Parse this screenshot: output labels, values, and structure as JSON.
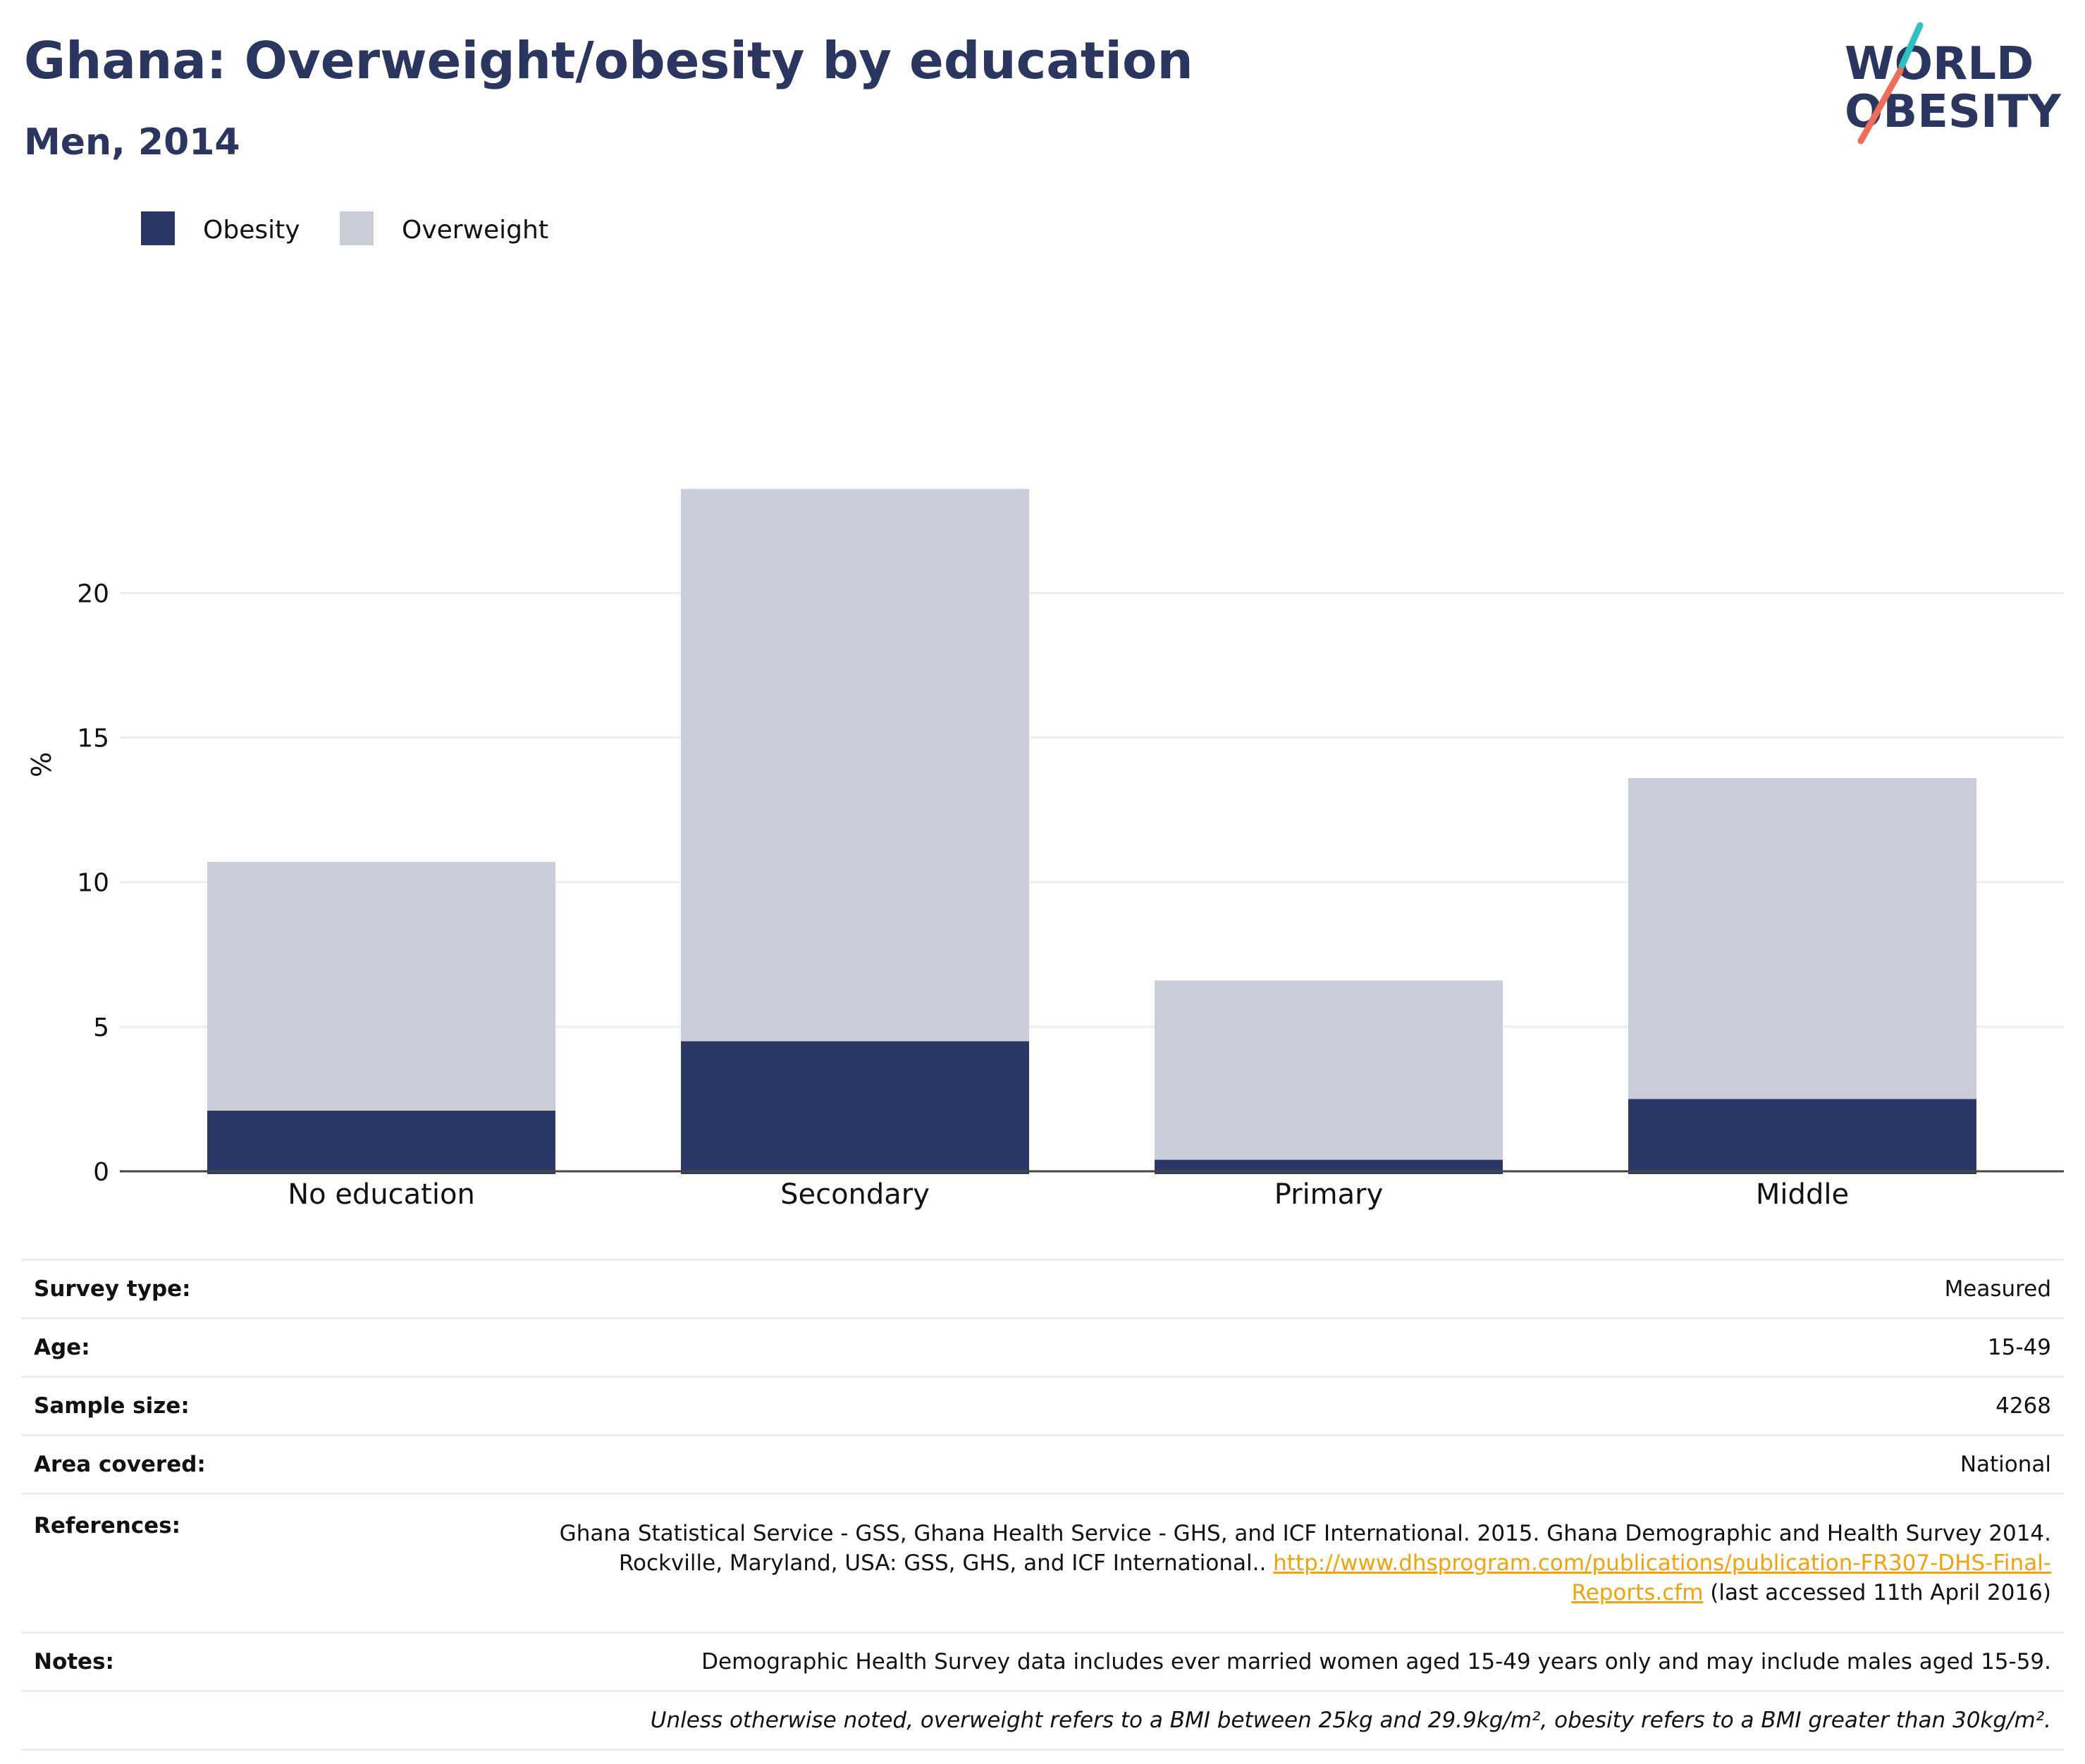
{
  "header": {
    "title": "Ghana: Overweight/obesity by education",
    "subtitle": "Men, 2014"
  },
  "logo": {
    "line1": "WORLD",
    "line2": "OBESITY"
  },
  "colors": {
    "obesity": "#2b3764",
    "overweight": "#cbcdd8",
    "title": "#2a3560",
    "accent_teal": "#2fc0c3",
    "accent_coral": "#ef6e5a",
    "link": "#f0a30a",
    "grid": "#ececf1"
  },
  "chart_data": {
    "type": "bar",
    "stacked": true,
    "categories": [
      "No education",
      "Secondary",
      "Primary",
      "Middle"
    ],
    "series": [
      {
        "name": "Obesity",
        "values": [
          2.1,
          4.5,
          0.4,
          2.5
        ]
      },
      {
        "name": "Overweight",
        "values": [
          8.6,
          19.1,
          6.2,
          11.1
        ]
      }
    ],
    "ylabel": "%",
    "yticks": [
      0,
      5,
      10,
      15,
      20
    ],
    "ylim": [
      0,
      27.3
    ],
    "grid": true,
    "legend": "top-left"
  },
  "info": {
    "rows": [
      {
        "label": "Survey type:",
        "value": "Measured"
      },
      {
        "label": "Age:",
        "value": "15-49"
      },
      {
        "label": "Sample size:",
        "value": "4268"
      },
      {
        "label": "Area covered:",
        "value": "National"
      }
    ],
    "references": {
      "label": "References:",
      "line1": "Ghana Statistical Service - GSS, Ghana Health Service - GHS, and ICF International. 2015. Ghana Demographic and Health Survey 2014.",
      "line2": "Rockville, Maryland, USA: GSS, GHS, and ICF International.. ",
      "link_part1": "http://www.dhsprogram.com/publications/publication-FR307-DHS-Final-",
      "link_part2": "Reports.cfm",
      "suffix": " (last accessed 11th April 2016)"
    },
    "notes": {
      "label": "Notes:",
      "value": "Demographic Health Survey data includes ever married women aged 15-49 years only and may include males aged 15-59."
    },
    "footnote": "Unless otherwise noted, overweight refers to a BMI between 25kg and 29.9kg/m², obesity refers to a BMI greater than 30kg/m²."
  }
}
